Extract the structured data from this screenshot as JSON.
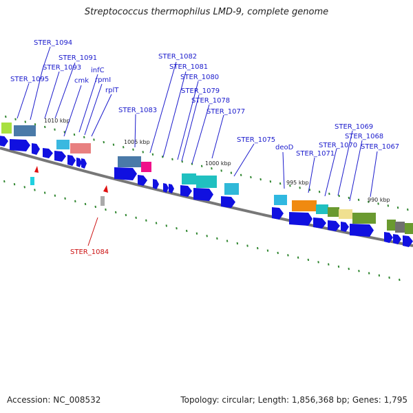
{
  "title": "Streptococcus thermophilus LMD-9, complete genome",
  "footer": {
    "accession": "Accession: NC_008532",
    "summary": "Topology: circular; Length: 1,856,368 bp; Genes: 1,795"
  },
  "colors": {
    "label": "#1a1acc",
    "rna_label": "#cc1111",
    "backbone": "#777777",
    "tick": "#1a7a1a",
    "cds": "#1010e0"
  },
  "scale_labels": [
    "1010 kbp",
    "1005 kbp",
    "1000 kbp",
    "995 kbp",
    "990 kbp"
  ],
  "gene_labels": [
    "STER_1094",
    "STER_1091",
    "STER_1093",
    "infC",
    "STER_1095",
    "cmk",
    "rpmI",
    "rplT",
    "STER_1082",
    "STER_1081",
    "STER_1080",
    "STER_1079",
    "STER_1078",
    "STER_1083",
    "STER_1077",
    "STER_1075",
    "deoD",
    "STER_1069",
    "STER_1068",
    "STER_1070",
    "STER_1071",
    "STER_1067"
  ],
  "rna_labels": [
    "STER_1084"
  ]
}
